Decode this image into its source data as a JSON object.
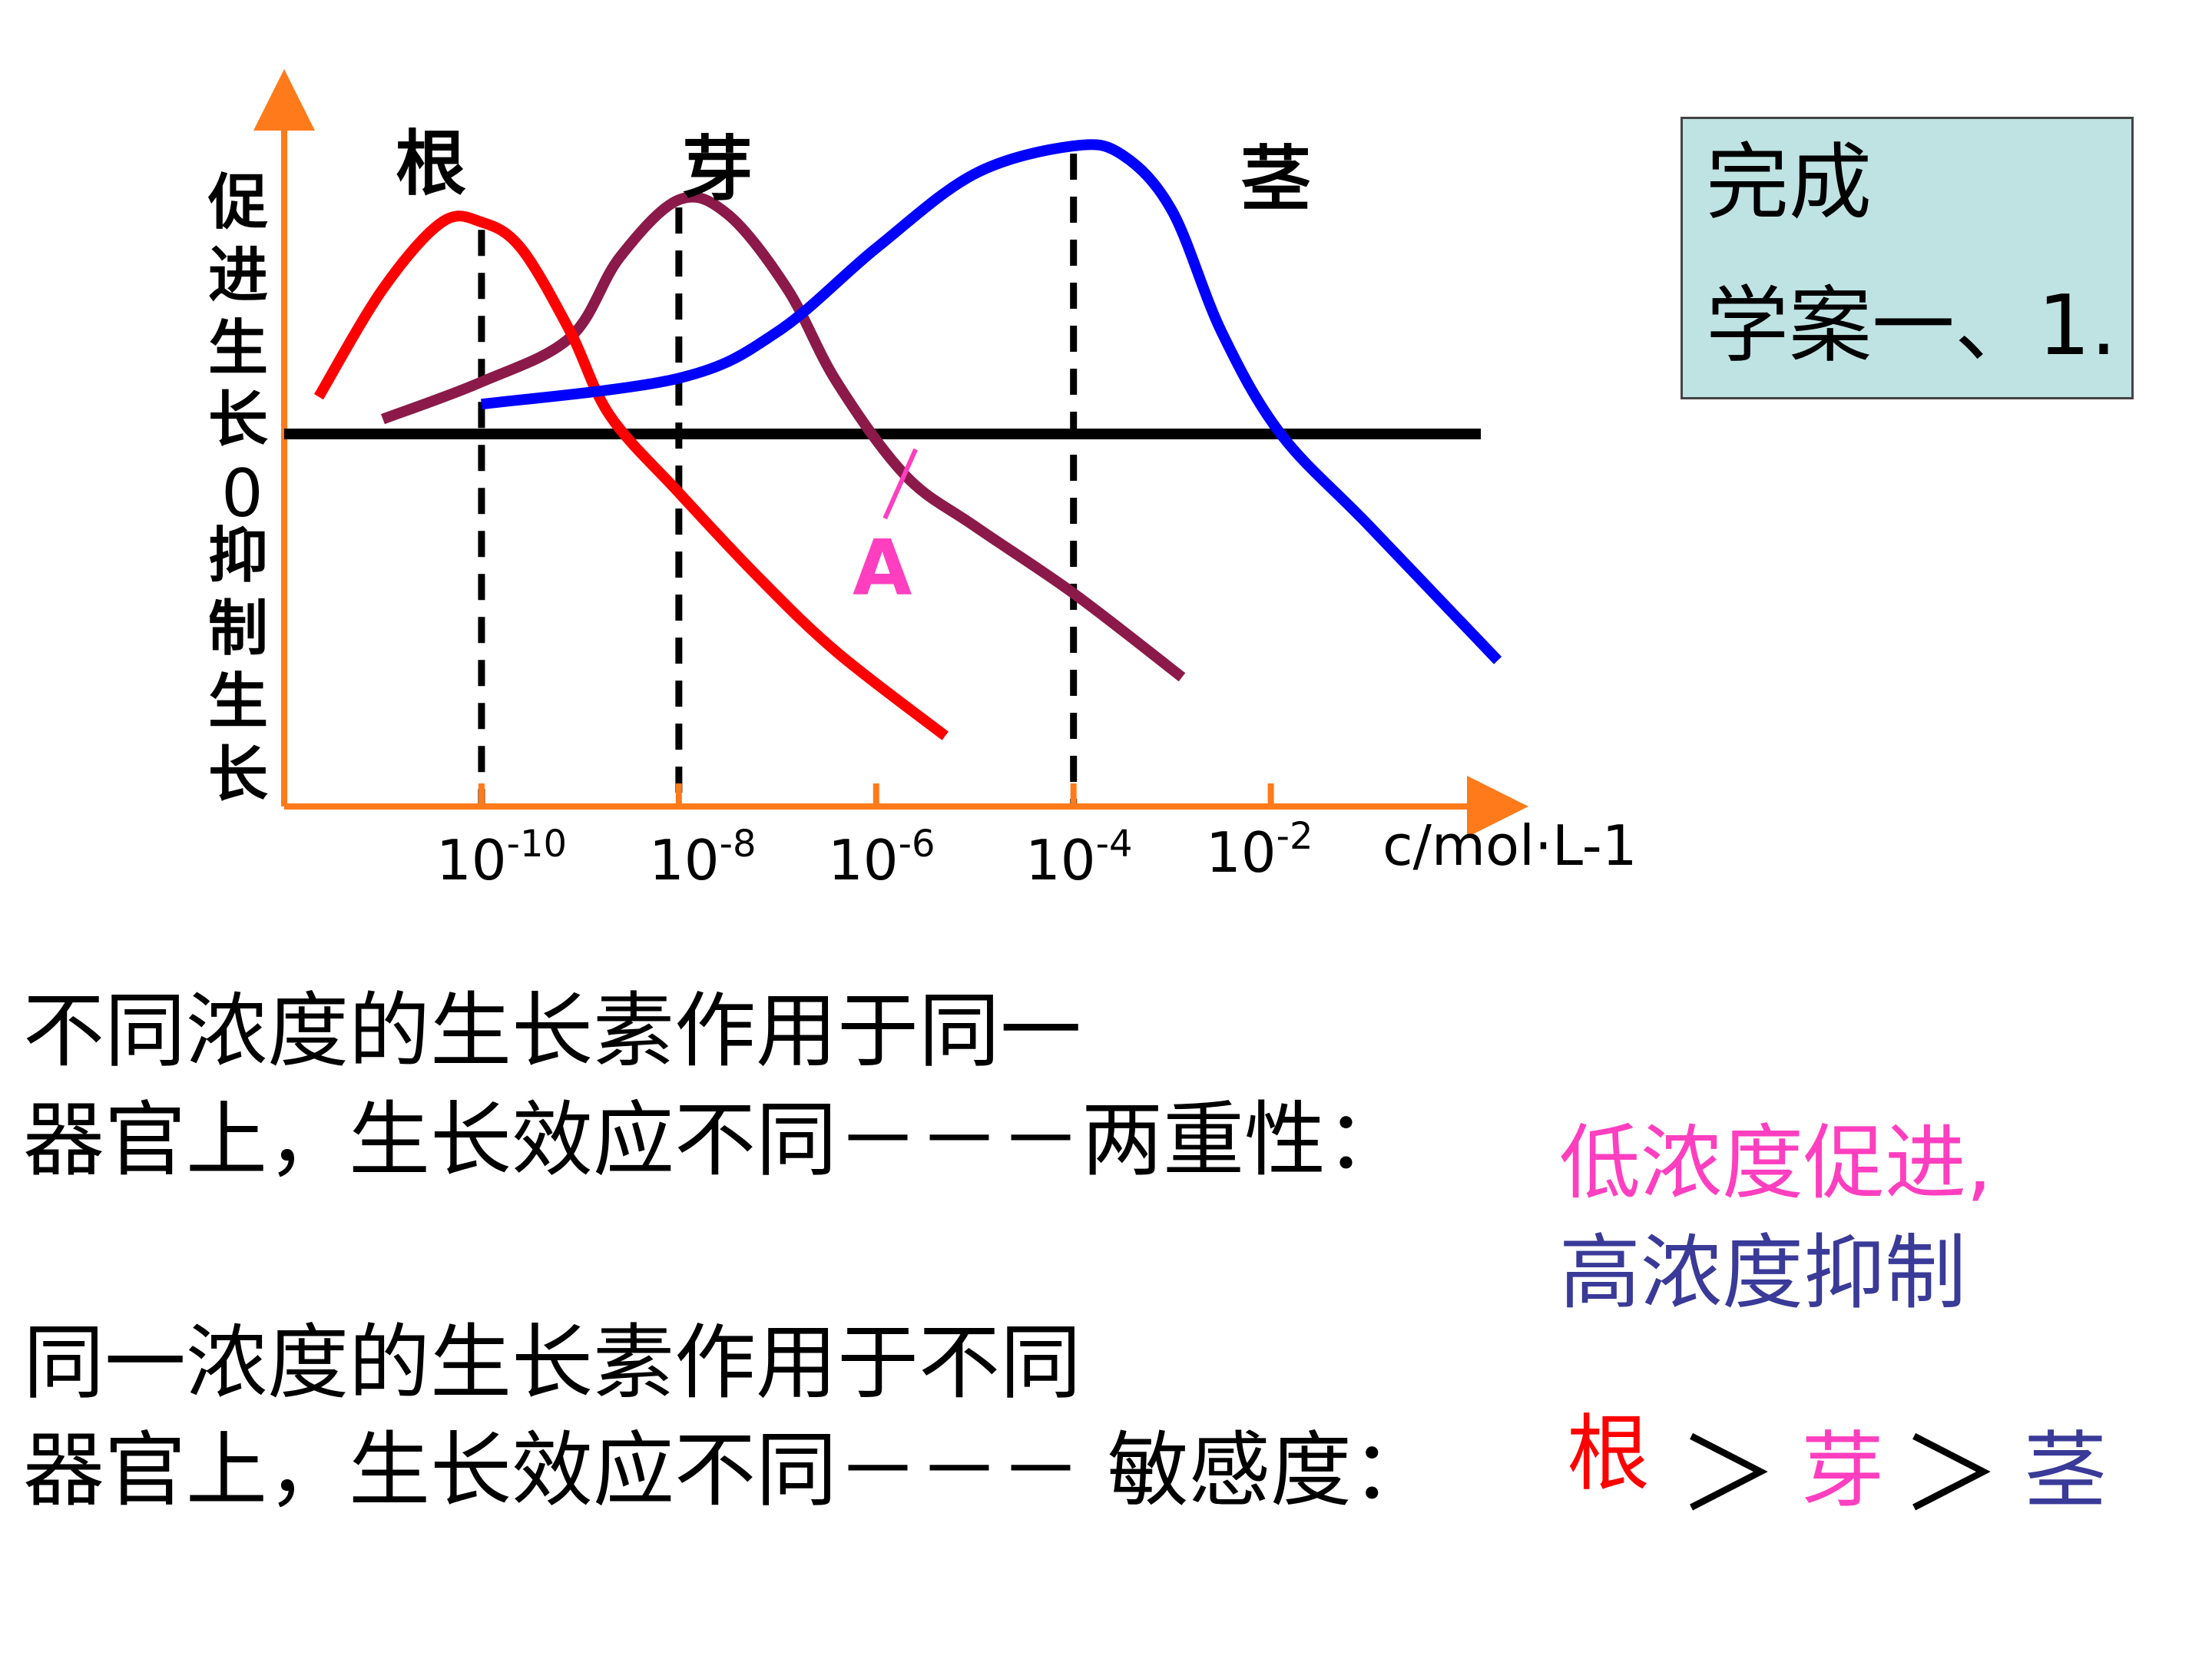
{
  "chart_data": {
    "type": "line",
    "xlabel": "c/mol·L-1",
    "ylabel_top": "促进生长",
    "ylabel_zero": "0",
    "ylabel_bottom": "抑制生长",
    "x_ticks": [
      {
        "base": "10",
        "exp": "-10"
      },
      {
        "base": "10",
        "exp": "-8"
      },
      {
        "base": "10",
        "exp": "-6"
      },
      {
        "base": "10",
        "exp": "-4"
      },
      {
        "base": "10",
        "exp": "-2"
      }
    ],
    "x_tick_values": [
      -10,
      -8,
      -6,
      -4,
      -2
    ],
    "x_range": [
      -12,
      1
    ],
    "y_range": [
      -1.9,
      1.55
    ],
    "series": [
      {
        "name": "根",
        "color": "#ff0000",
        "x": [
          -11.65,
          -11.0,
          -10.4,
          -10.0,
          -9.6,
          -9.1,
          -8.7,
          -8.0,
          -7.2,
          -6.4,
          -5.3
        ],
        "y": [
          0.2,
          0.78,
          1.14,
          1.14,
          1.0,
          0.55,
          0.1,
          -0.35,
          -0.85,
          -1.3,
          -1.8
        ],
        "peak_x": -10,
        "peak_label": "根"
      },
      {
        "name": "芽",
        "color": "#8b1a4a",
        "x": [
          -11.0,
          -10.0,
          -9.1,
          -8.6,
          -8.0,
          -7.5,
          -6.9,
          -6.4,
          -5.7,
          -5.0,
          -4.0,
          -2.9
        ],
        "y": [
          0.08,
          0.28,
          0.52,
          0.95,
          1.26,
          1.18,
          0.78,
          0.28,
          -0.25,
          -0.55,
          -0.95,
          -1.45
        ],
        "peak_x": -8,
        "peak_label": "芽"
      },
      {
        "name": "茎",
        "color": "#0000ff",
        "x": [
          -10.0,
          -8.0,
          -7.0,
          -6.0,
          -5.0,
          -4.0,
          -3.5,
          -3.0,
          -2.5,
          -1.9,
          -1.0,
          0.3
        ],
        "y": [
          0.16,
          0.3,
          0.55,
          1.0,
          1.4,
          1.55,
          1.5,
          1.2,
          0.55,
          0.0,
          -0.55,
          -1.35
        ],
        "peak_x": -4,
        "peak_label": "茎"
      }
    ],
    "reference_lines": [
      -10,
      -8,
      -4
    ],
    "point_a": {
      "label": "A",
      "x": -5.6,
      "y": 0.0
    }
  },
  "note": {
    "line1": "完成",
    "line2": "学案一、1."
  },
  "text": {
    "para1_line1": "不同浓度的生长素作用于同一",
    "para1_line2": "器官上，生长效应不同－－－两重性：",
    "duality_low": "低浓度促进,",
    "duality_high": "高浓度抑制",
    "para2_line1": "同一浓度的生长素作用于不同",
    "para2_line2": "器官上，生长效应不同－－－ 敏感度：",
    "order_1": "根",
    "gt_1": "＞",
    "order_2": "芽",
    "gt_2": "＞",
    "order_3": "茎"
  }
}
